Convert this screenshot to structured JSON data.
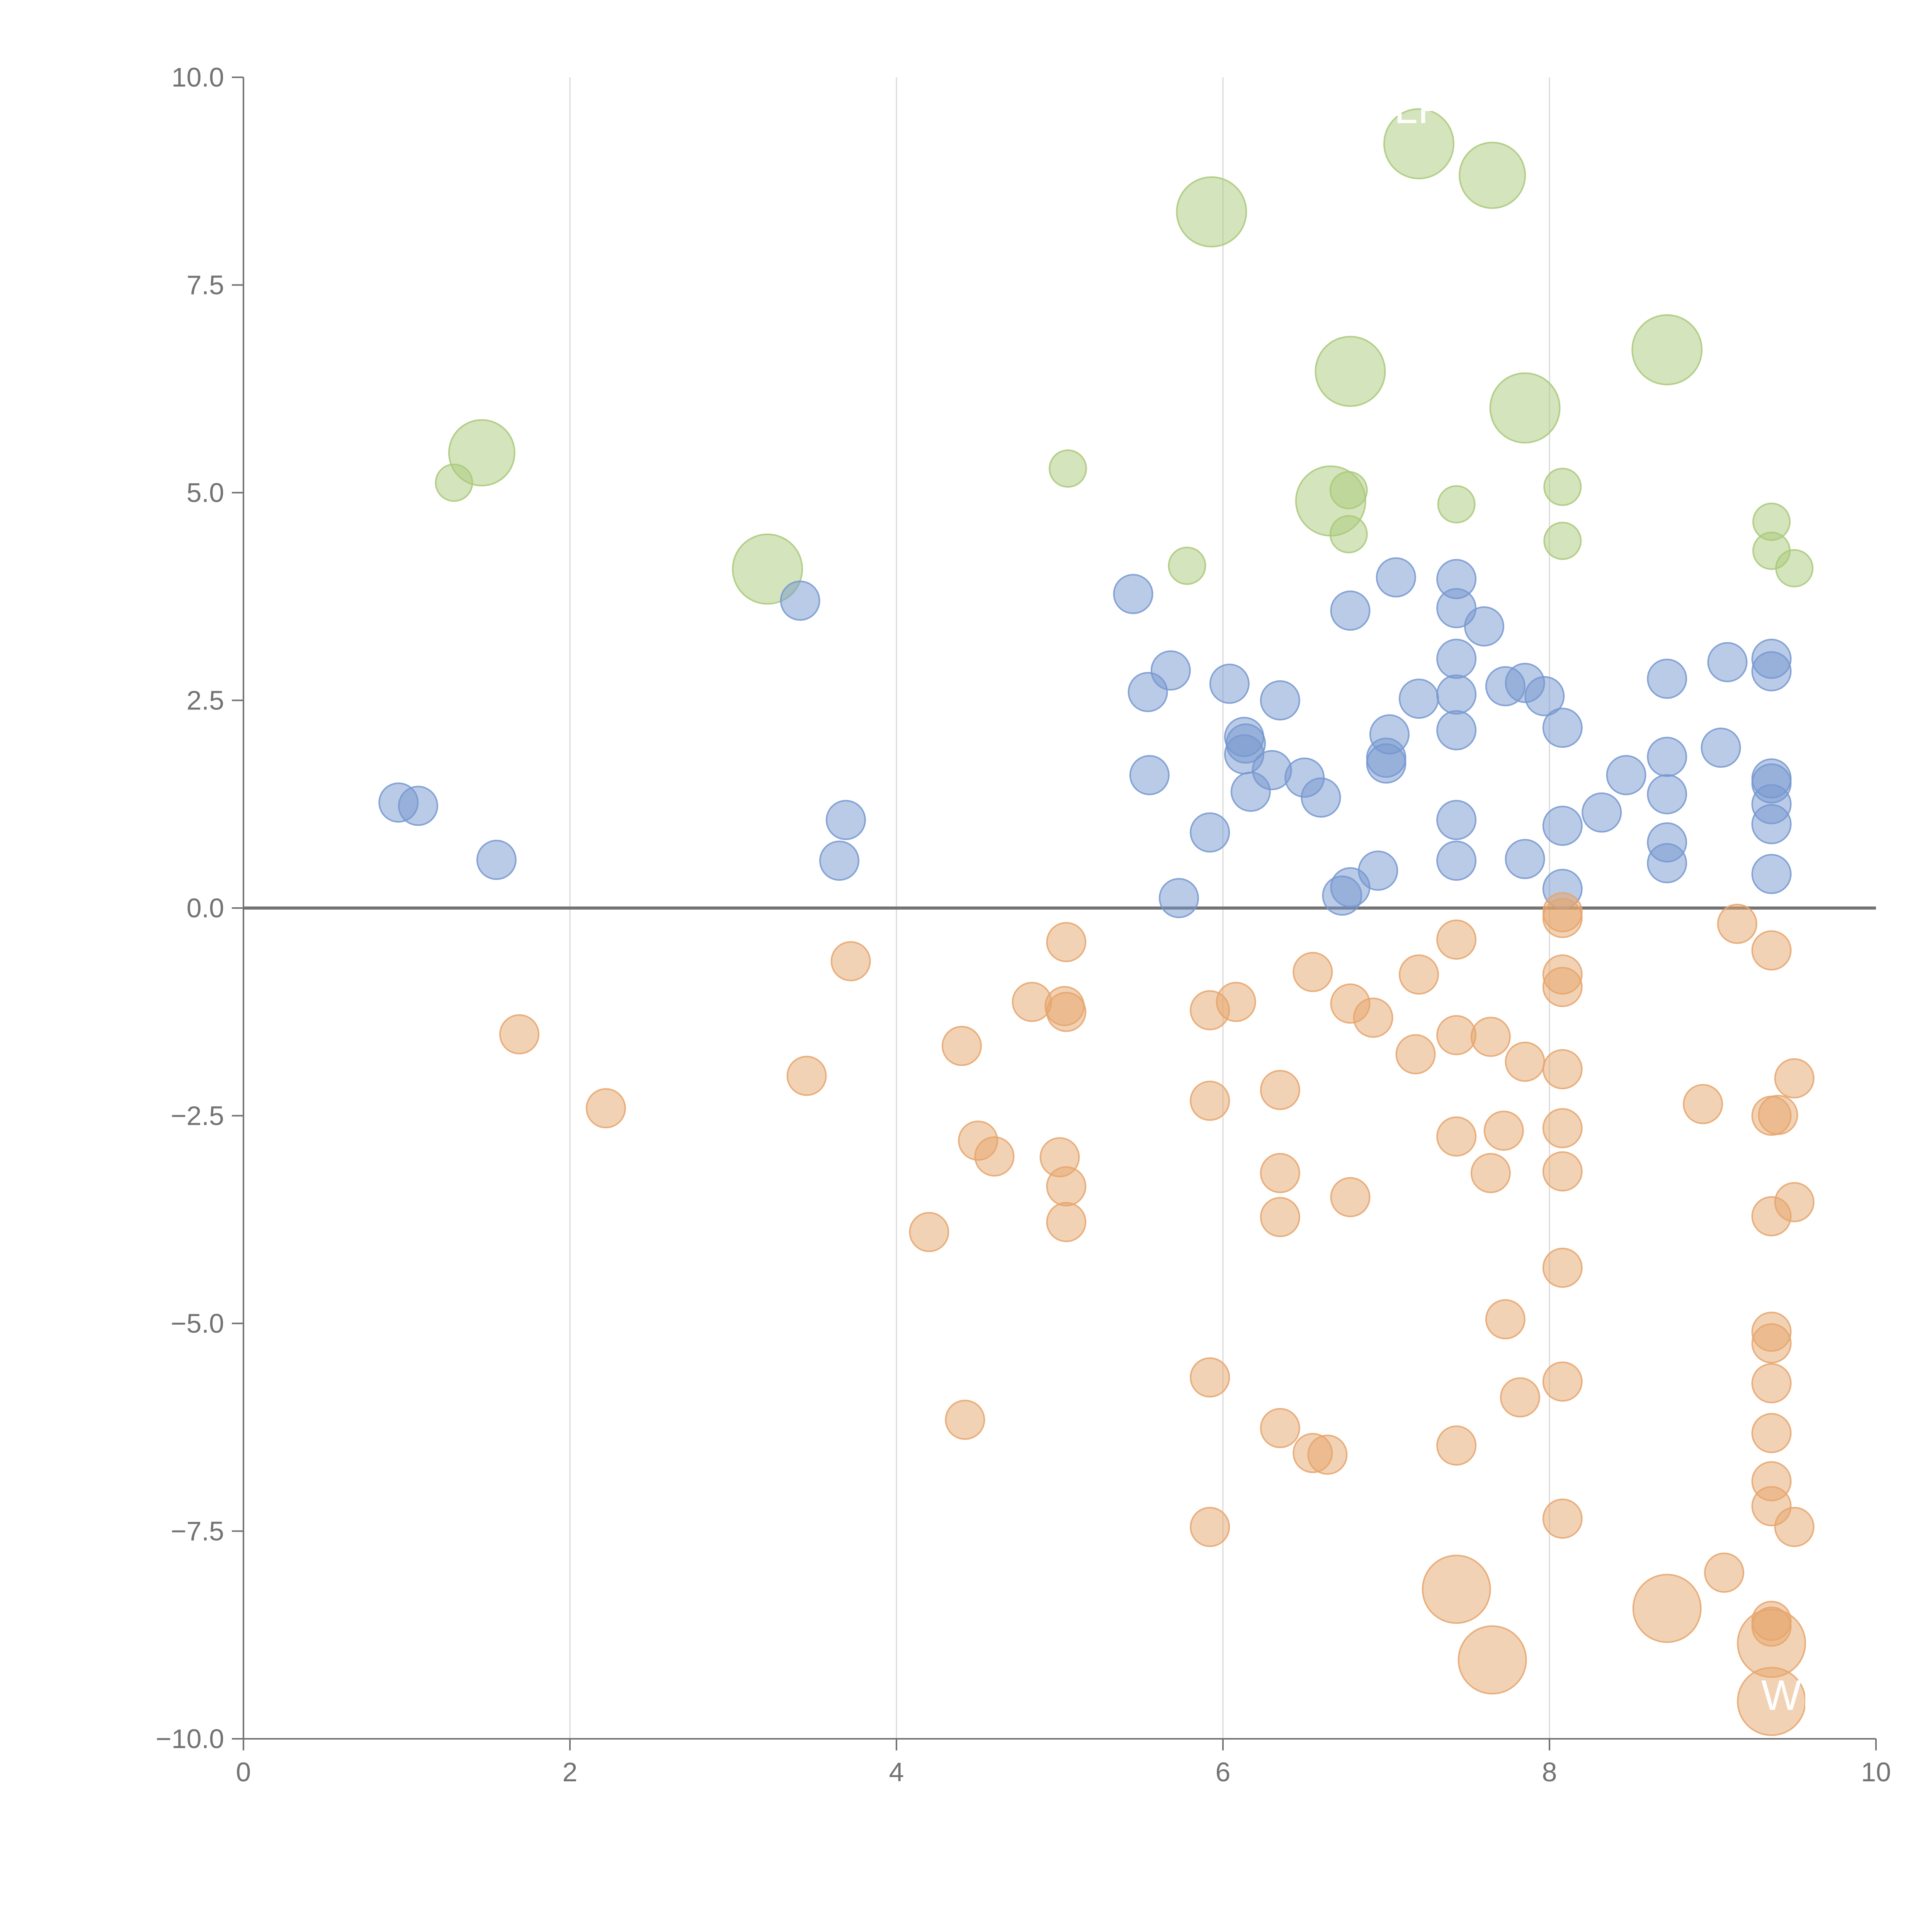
{
  "chart_data": {
    "type": "scatter",
    "title": "",
    "xlabel": "",
    "ylabel": "",
    "xlim": [
      0,
      10
    ],
    "ylim": [
      -10,
      10
    ],
    "x_ticks": [
      "0",
      "2",
      "4",
      "6",
      "8",
      "10"
    ],
    "y_ticks": [
      "10.0",
      "7.5",
      "5.0",
      "2.5",
      "0.0",
      "−2.5",
      "−5.0",
      "−7.5",
      "−10.0"
    ],
    "x_tick_values": [
      0,
      2,
      4,
      6,
      8,
      10
    ],
    "y_tick_values": [
      10,
      7.5,
      5,
      2.5,
      0,
      -2.5,
      -5,
      -7.5,
      -10
    ],
    "vertical_grid": true,
    "horizontal_grid": false,
    "zero_line": 0,
    "legend": "none",
    "colors": {
      "green": "#a9c97a",
      "blue": "#7598d0",
      "orange": "#e6a56c"
    },
    "series": [
      {
        "color_key": "green",
        "points": [
          [
            5.93,
            8.38,
            1.8
          ],
          [
            7.2,
            9.2,
            1.8
          ],
          [
            7.65,
            8.82,
            1.7
          ],
          [
            6.78,
            6.46,
            1.8
          ],
          [
            8.72,
            6.72,
            1.8
          ],
          [
            7.85,
            6.02,
            1.8
          ],
          [
            1.46,
            5.48,
            1.7
          ],
          [
            3.21,
            4.08,
            1.8
          ],
          [
            6.66,
            4.9,
            1.8
          ],
          [
            1.29,
            5.12,
            0.95
          ],
          [
            5.05,
            5.29,
            0.95
          ],
          [
            6.77,
            5.03,
            0.95
          ],
          [
            7.43,
            4.86,
            0.95
          ],
          [
            8.08,
            5.07,
            0.95
          ],
          [
            9.36,
            4.65,
            0.95
          ],
          [
            8.08,
            4.42,
            0.95
          ],
          [
            9.36,
            4.3,
            0.95
          ],
          [
            9.5,
            4.09,
            0.95
          ],
          [
            5.78,
            4.12,
            0.95
          ],
          [
            6.77,
            4.5,
            0.95
          ]
        ]
      },
      {
        "color_key": "blue",
        "points": [
          [
            0.95,
            1.27,
            1
          ],
          [
            1.07,
            1.23,
            1
          ],
          [
            1.55,
            0.58,
            1
          ],
          [
            3.41,
            3.7,
            1
          ],
          [
            3.69,
            1.06,
            1
          ],
          [
            3.65,
            0.57,
            1
          ],
          [
            5.45,
            3.78,
            1
          ],
          [
            5.54,
            2.6,
            1
          ],
          [
            5.68,
            2.86,
            1
          ],
          [
            5.55,
            1.6,
            1
          ],
          [
            5.92,
            0.91,
            1
          ],
          [
            5.73,
            0.12,
            1
          ],
          [
            6.04,
            2.7,
            1
          ],
          [
            6.13,
            2.06,
            1
          ],
          [
            6.14,
            1.98,
            1
          ],
          [
            6.13,
            1.85,
            1
          ],
          [
            6.17,
            1.4,
            1
          ],
          [
            6.3,
            1.66,
            1
          ],
          [
            6.35,
            2.5,
            1
          ],
          [
            6.5,
            1.57,
            1
          ],
          [
            6.6,
            1.33,
            1
          ],
          [
            6.73,
            0.15,
            1
          ],
          [
            6.78,
            0.25,
            1
          ],
          [
            6.78,
            3.58,
            1
          ],
          [
            6.95,
            0.45,
            1
          ],
          [
            7.0,
            1.81,
            1
          ],
          [
            7.0,
            1.74,
            1
          ],
          [
            7.02,
            2.09,
            1
          ],
          [
            7.06,
            3.98,
            1
          ],
          [
            7.2,
            2.52,
            1
          ],
          [
            7.43,
            3.96,
            1
          ],
          [
            7.43,
            3.61,
            1
          ],
          [
            7.43,
            3.0,
            1
          ],
          [
            7.43,
            2.57,
            1
          ],
          [
            7.43,
            2.14,
            1
          ],
          [
            7.43,
            1.06,
            1
          ],
          [
            7.43,
            0.57,
            1
          ],
          [
            7.6,
            3.39,
            1
          ],
          [
            7.73,
            2.67,
            1
          ],
          [
            7.85,
            2.71,
            1
          ],
          [
            7.97,
            2.55,
            1
          ],
          [
            7.85,
            0.59,
            1
          ],
          [
            8.08,
            2.17,
            1
          ],
          [
            8.08,
            0.99,
            1
          ],
          [
            8.08,
            0.23,
            1
          ],
          [
            8.32,
            1.15,
            1
          ],
          [
            8.47,
            1.6,
            1
          ],
          [
            8.72,
            2.76,
            1
          ],
          [
            8.72,
            1.82,
            1
          ],
          [
            8.72,
            1.37,
            1
          ],
          [
            8.72,
            0.79,
            1
          ],
          [
            8.72,
            0.54,
            1
          ],
          [
            9.05,
            1.93,
            1
          ],
          [
            9.09,
            2.96,
            1
          ],
          [
            9.36,
            3.0,
            1
          ],
          [
            9.36,
            2.85,
            1
          ],
          [
            9.36,
            1.56,
            1
          ],
          [
            9.36,
            1.5,
            1
          ],
          [
            9.36,
            1.25,
            1
          ],
          [
            9.36,
            1.01,
            1
          ],
          [
            9.36,
            0.41,
            1
          ]
        ]
      },
      {
        "color_key": "orange",
        "points": [
          [
            1.69,
            -1.52,
            1
          ],
          [
            2.22,
            -2.41,
            1
          ],
          [
            3.45,
            -2.02,
            1
          ],
          [
            3.72,
            -0.64,
            1
          ],
          [
            4.2,
            -3.9,
            1
          ],
          [
            4.4,
            -1.66,
            1
          ],
          [
            4.42,
            -6.16,
            1
          ],
          [
            4.5,
            -2.8,
            1
          ],
          [
            4.6,
            -2.99,
            1
          ],
          [
            4.83,
            -1.13,
            1
          ],
          [
            5.03,
            -1.18,
            1
          ],
          [
            5.04,
            -1.25,
            1
          ],
          [
            5.04,
            -0.41,
            1
          ],
          [
            5.0,
            -3.0,
            1
          ],
          [
            5.04,
            -3.35,
            1
          ],
          [
            5.04,
            -3.78,
            1
          ],
          [
            5.92,
            -1.23,
            1
          ],
          [
            5.92,
            -2.32,
            1
          ],
          [
            5.92,
            -5.65,
            1
          ],
          [
            5.92,
            -7.45,
            1
          ],
          [
            6.08,
            -1.13,
            1
          ],
          [
            6.35,
            -2.19,
            1
          ],
          [
            6.35,
            -3.19,
            1
          ],
          [
            6.35,
            -3.72,
            1
          ],
          [
            6.35,
            -6.26,
            1
          ],
          [
            6.55,
            -0.77,
            1
          ],
          [
            6.55,
            -6.56,
            1
          ],
          [
            6.64,
            -6.58,
            1
          ],
          [
            6.78,
            -1.15,
            1
          ],
          [
            6.78,
            -3.48,
            1
          ],
          [
            6.92,
            -1.32,
            1
          ],
          [
            7.2,
            -0.8,
            1
          ],
          [
            7.18,
            -1.76,
            1
          ],
          [
            7.43,
            -0.38,
            1
          ],
          [
            7.43,
            -1.53,
            1
          ],
          [
            7.43,
            -2.75,
            1
          ],
          [
            7.43,
            -6.47,
            1
          ],
          [
            7.64,
            -1.55,
            1
          ],
          [
            7.64,
            -3.19,
            1
          ],
          [
            7.72,
            -2.68,
            1
          ],
          [
            7.73,
            -4.95,
            1
          ],
          [
            7.82,
            -5.89,
            1
          ],
          [
            7.85,
            -1.85,
            1
          ],
          [
            8.08,
            -0.05,
            1
          ],
          [
            8.08,
            -0.12,
            1
          ],
          [
            8.08,
            -0.8,
            1
          ],
          [
            8.08,
            -0.95,
            1
          ],
          [
            8.08,
            -1.94,
            1
          ],
          [
            8.08,
            -2.65,
            1
          ],
          [
            8.08,
            -3.17,
            1
          ],
          [
            8.08,
            -4.33,
            1
          ],
          [
            8.08,
            -5.7,
            1
          ],
          [
            8.08,
            -7.35,
            1
          ],
          [
            8.94,
            -2.36,
            1
          ],
          [
            9.07,
            -8.0,
            1
          ],
          [
            9.15,
            -0.19,
            1
          ],
          [
            9.36,
            -0.51,
            1
          ],
          [
            9.36,
            -2.5,
            1
          ],
          [
            9.4,
            -2.49,
            1
          ],
          [
            9.36,
            -3.71,
            1
          ],
          [
            9.36,
            -5.1,
            1
          ],
          [
            9.36,
            -5.24,
            1
          ],
          [
            9.36,
            -5.72,
            1
          ],
          [
            9.36,
            -6.32,
            1
          ],
          [
            9.36,
            -6.9,
            1
          ],
          [
            9.36,
            -7.2,
            1
          ],
          [
            9.36,
            -8.58,
            1
          ],
          [
            9.36,
            -8.65,
            1
          ],
          [
            9.5,
            -2.05,
            1
          ],
          [
            9.5,
            -3.54,
            1
          ],
          [
            9.5,
            -7.45,
            1
          ],
          [
            7.43,
            -8.2,
            1.75
          ],
          [
            7.65,
            -9.05,
            1.75
          ],
          [
            8.72,
            -8.43,
            1.75
          ],
          [
            9.36,
            -8.85,
            1.75
          ],
          [
            9.36,
            -9.55,
            1.75
          ]
        ]
      }
    ],
    "annotations": [
      {
        "text": "LF",
        "x": 7.2,
        "y": 9.45
      },
      {
        "text": "WIN",
        "x": 9.55,
        "y": -9.65
      }
    ]
  }
}
